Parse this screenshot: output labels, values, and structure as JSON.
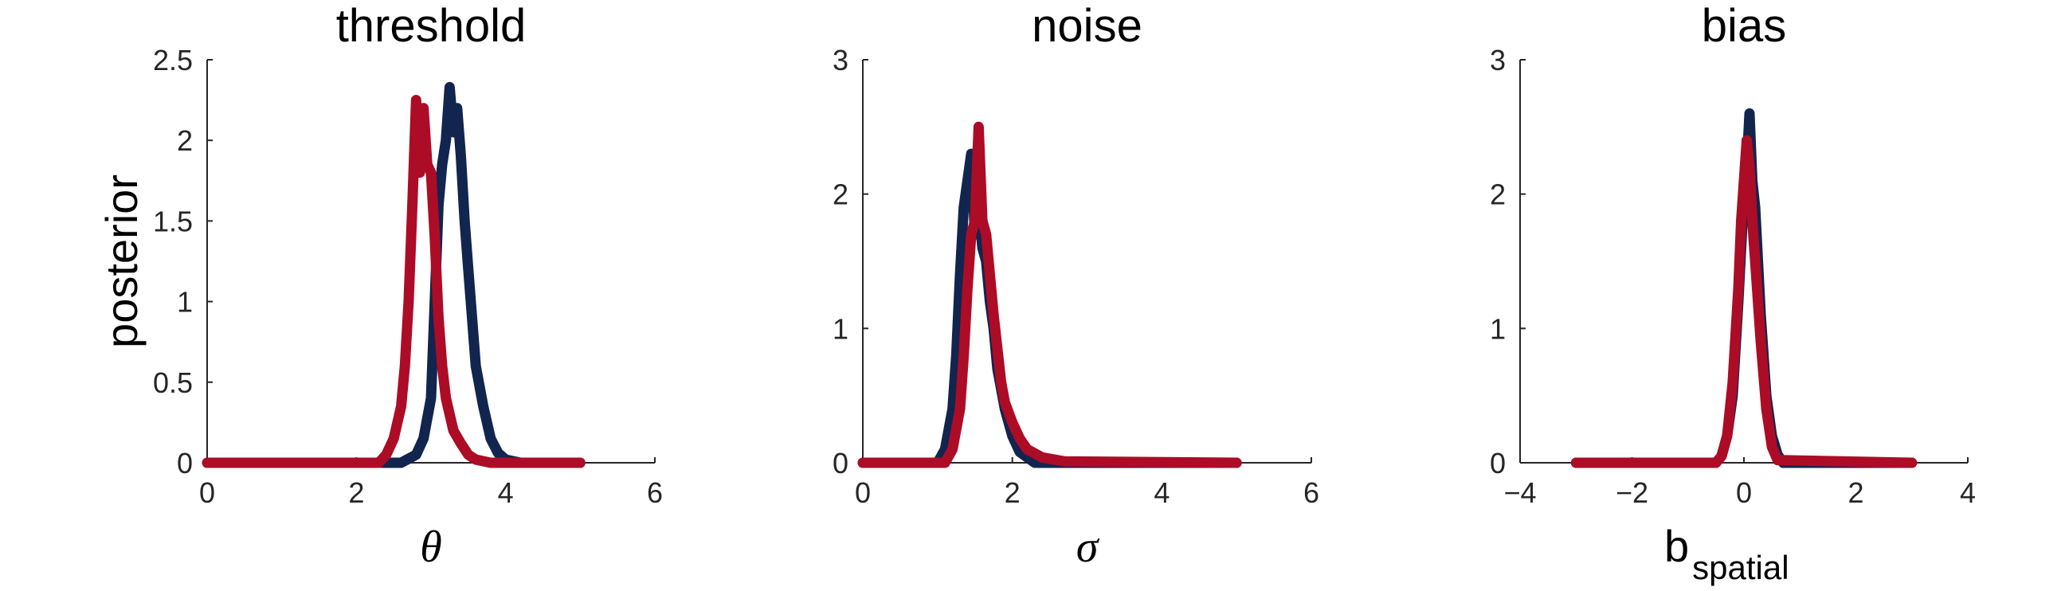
{
  "colors": {
    "series_a": "#12254e",
    "series_b": "#ad0c26"
  },
  "chart_data": [
    {
      "type": "line",
      "title": "threshold",
      "xlabel": "θ",
      "xlabel_sub": "",
      "ylabel": "posterior",
      "xlim": [
        0,
        6
      ],
      "ylim": [
        0,
        2.5
      ],
      "xticks": [
        0,
        2,
        4,
        6
      ],
      "yticks": [
        0,
        0.5,
        1,
        1.5,
        2,
        2.5
      ],
      "ytick_labels": [
        "0",
        "0.5",
        "1",
        "1.5",
        "2",
        "2.5"
      ],
      "series": [
        {
          "color": "#12254e",
          "x": [
            0,
            2.6,
            2.8,
            2.9,
            3.0,
            3.05,
            3.1,
            3.15,
            3.2,
            3.25,
            3.3,
            3.35,
            3.4,
            3.45,
            3.5,
            3.55,
            3.6,
            3.7,
            3.8,
            3.9,
            4.0,
            4.2,
            5.0
          ],
          "y": [
            0,
            0,
            0.05,
            0.15,
            0.4,
            1.0,
            1.6,
            1.85,
            2.0,
            2.33,
            2.05,
            2.2,
            1.9,
            1.5,
            1.2,
            0.9,
            0.6,
            0.35,
            0.15,
            0.06,
            0.02,
            0,
            0
          ]
        },
        {
          "color": "#ad0c26",
          "x": [
            0,
            2.3,
            2.4,
            2.5,
            2.6,
            2.65,
            2.7,
            2.75,
            2.8,
            2.85,
            2.9,
            2.95,
            3.0,
            3.05,
            3.1,
            3.15,
            3.2,
            3.3,
            3.4,
            3.5,
            3.6,
            3.8,
            5.0
          ],
          "y": [
            0,
            0,
            0.05,
            0.15,
            0.35,
            0.6,
            1.0,
            1.6,
            2.25,
            1.8,
            2.2,
            1.85,
            1.8,
            1.4,
            0.9,
            0.6,
            0.4,
            0.2,
            0.12,
            0.05,
            0.02,
            0,
            0
          ]
        }
      ]
    },
    {
      "type": "line",
      "title": "noise",
      "xlabel": "σ",
      "xlabel_sub": "",
      "ylabel": "",
      "xlim": [
        0,
        6
      ],
      "ylim": [
        0,
        3
      ],
      "xticks": [
        0,
        2,
        4,
        6
      ],
      "yticks": [
        0,
        1,
        2,
        3
      ],
      "ytick_labels": [
        "0",
        "1",
        "2",
        "3"
      ],
      "series": [
        {
          "color": "#12254e",
          "x": [
            0,
            1.0,
            1.1,
            1.2,
            1.25,
            1.3,
            1.35,
            1.4,
            1.45,
            1.5,
            1.55,
            1.6,
            1.65,
            1.7,
            1.75,
            1.8,
            1.9,
            2.0,
            2.1,
            2.3,
            5.0
          ],
          "y": [
            0,
            0,
            0.1,
            0.4,
            0.8,
            1.4,
            1.9,
            2.1,
            2.3,
            1.7,
            1.9,
            1.6,
            1.5,
            1.2,
            1.0,
            0.7,
            0.4,
            0.2,
            0.08,
            0,
            0
          ]
        },
        {
          "color": "#ad0c26",
          "x": [
            0,
            1.1,
            1.2,
            1.3,
            1.35,
            1.4,
            1.45,
            1.5,
            1.55,
            1.6,
            1.65,
            1.7,
            1.75,
            1.8,
            1.85,
            1.9,
            2.0,
            2.1,
            2.2,
            2.4,
            2.7,
            5.0
          ],
          "y": [
            0,
            0,
            0.1,
            0.4,
            0.8,
            1.3,
            1.7,
            1.8,
            2.5,
            1.8,
            1.7,
            1.4,
            1.1,
            0.85,
            0.6,
            0.45,
            0.3,
            0.18,
            0.1,
            0.04,
            0.01,
            0
          ]
        }
      ]
    },
    {
      "type": "line",
      "title": "bias",
      "xlabel": "b",
      "xlabel_sub": "spatial",
      "ylabel": "",
      "xlim": [
        -4,
        4
      ],
      "ylim": [
        0,
        3
      ],
      "xticks": [
        -4,
        -2,
        0,
        2,
        4
      ],
      "yticks": [
        0,
        1,
        2,
        3
      ],
      "ytick_labels": [
        "0",
        "1",
        "2",
        "3"
      ],
      "series": [
        {
          "color": "#12254e",
          "x": [
            -3,
            -0.5,
            -0.4,
            -0.3,
            -0.2,
            -0.1,
            0.0,
            0.05,
            0.1,
            0.15,
            0.2,
            0.3,
            0.4,
            0.5,
            0.6,
            0.7,
            3
          ],
          "y": [
            0,
            0,
            0.05,
            0.2,
            0.5,
            1.2,
            2.0,
            2.2,
            2.6,
            2.1,
            1.9,
            1.1,
            0.5,
            0.2,
            0.06,
            0,
            0
          ]
        },
        {
          "color": "#ad0c26",
          "x": [
            -3,
            -0.5,
            -0.4,
            -0.3,
            -0.2,
            -0.1,
            -0.05,
            0.0,
            0.05,
            0.1,
            0.15,
            0.2,
            0.3,
            0.4,
            0.5,
            0.6,
            3
          ],
          "y": [
            0,
            0,
            0.05,
            0.2,
            0.6,
            1.3,
            1.8,
            2.1,
            2.4,
            2.2,
            1.8,
            1.5,
            0.9,
            0.4,
            0.12,
            0.02,
            0
          ]
        }
      ]
    }
  ]
}
